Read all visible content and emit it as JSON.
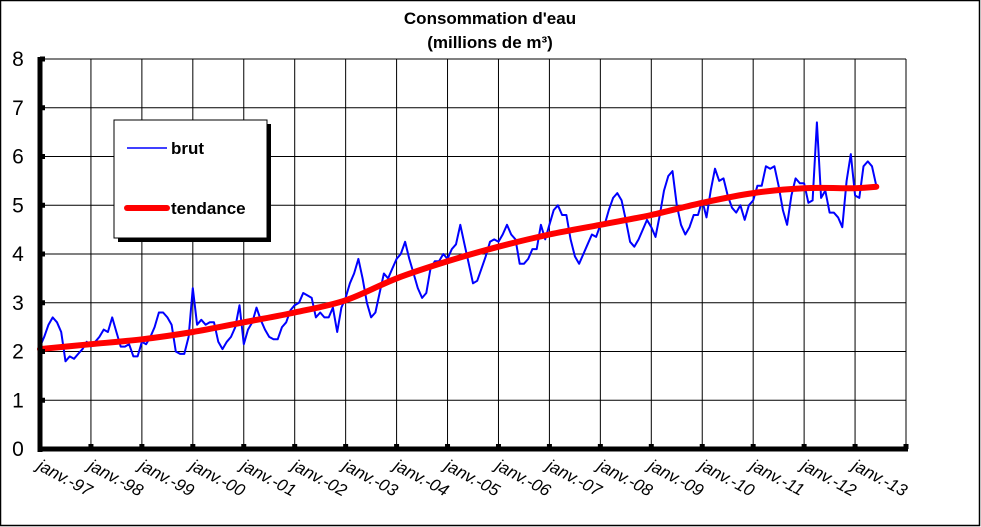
{
  "chart_data": {
    "type": "line",
    "title": "Consommation d'eau",
    "subtitle": "(millions de m³)",
    "xlabel": "",
    "ylabel": "",
    "ylim": [
      0,
      8
    ],
    "yticks": [
      "0",
      "1",
      "2",
      "3",
      "4",
      "5",
      "6",
      "7",
      "8"
    ],
    "xlim": [
      "1997-01",
      "2014-01"
    ],
    "xticks": [
      "janv.-97",
      "janv.-98",
      "janv.-99",
      "janv.-00",
      "janv.-01",
      "janv.-02",
      "janv.-03",
      "janv.-04",
      "janv.-05",
      "janv.-06",
      "janv.-07",
      "janv.-08",
      "janv.-09",
      "janv.-10",
      "janv.-11",
      "janv.-12",
      "janv.-13"
    ],
    "grid": true,
    "legend_placement": "top-left",
    "series": [
      {
        "name": "brut",
        "color": "#0000ff",
        "frequency": "monthly",
        "start": "1997-01",
        "values": [
          2.1,
          2.3,
          2.55,
          2.7,
          2.6,
          2.4,
          1.8,
          1.9,
          1.85,
          1.95,
          2.05,
          2.2,
          2.1,
          2.2,
          2.3,
          2.45,
          2.4,
          2.7,
          2.4,
          2.1,
          2.1,
          2.15,
          1.9,
          1.9,
          2.2,
          2.15,
          2.3,
          2.5,
          2.8,
          2.8,
          2.7,
          2.55,
          2.0,
          1.95,
          1.95,
          2.3,
          3.3,
          2.55,
          2.65,
          2.55,
          2.6,
          2.6,
          2.2,
          2.05,
          2.2,
          2.3,
          2.5,
          2.95,
          2.15,
          2.45,
          2.6,
          2.9,
          2.65,
          2.45,
          2.3,
          2.25,
          2.25,
          2.5,
          2.6,
          2.85,
          2.95,
          3.0,
          3.2,
          3.15,
          3.1,
          2.7,
          2.8,
          2.7,
          2.7,
          2.9,
          2.4,
          2.9,
          3.1,
          3.4,
          3.6,
          3.9,
          3.5,
          3.0,
          2.7,
          2.8,
          3.2,
          3.6,
          3.5,
          3.7,
          3.9,
          4.0,
          4.25,
          3.9,
          3.6,
          3.3,
          3.1,
          3.2,
          3.7,
          3.85,
          3.85,
          4.0,
          3.9,
          4.1,
          4.2,
          4.6,
          4.2,
          3.8,
          3.4,
          3.45,
          3.7,
          3.95,
          4.25,
          4.3,
          4.25,
          4.4,
          4.6,
          4.4,
          4.3,
          3.8,
          3.8,
          3.9,
          4.1,
          4.1,
          4.6,
          4.3,
          4.6,
          4.9,
          5.0,
          4.8,
          4.8,
          4.3,
          3.95,
          3.8,
          4.0,
          4.2,
          4.4,
          4.35,
          4.6,
          4.6,
          4.9,
          5.15,
          5.25,
          5.1,
          4.7,
          4.25,
          4.15,
          4.3,
          4.5,
          4.7,
          4.55,
          4.35,
          4.8,
          5.3,
          5.6,
          5.7,
          5.0,
          4.6,
          4.4,
          4.55,
          4.8,
          4.8,
          5.1,
          4.75,
          5.3,
          5.75,
          5.5,
          5.55,
          5.2,
          4.95,
          4.85,
          5.0,
          4.7,
          5.0,
          5.1,
          5.4,
          5.4,
          5.8,
          5.75,
          5.8,
          5.4,
          4.9,
          4.6,
          5.2,
          5.55,
          5.45,
          5.45,
          5.05,
          5.1,
          6.7,
          5.15,
          5.3,
          4.85,
          4.85,
          4.75,
          4.55,
          5.5,
          6.05,
          5.2,
          5.15,
          5.8,
          5.9,
          5.8,
          5.4
        ]
      },
      {
        "name": "tendance",
        "color": "#ff0000",
        "points": [
          {
            "x": "1997-01",
            "y": 2.05
          },
          {
            "x": "1998-01",
            "y": 2.15
          },
          {
            "x": "1999-01",
            "y": 2.25
          },
          {
            "x": "2000-01",
            "y": 2.4
          },
          {
            "x": "2001-01",
            "y": 2.6
          },
          {
            "x": "2002-01",
            "y": 2.8
          },
          {
            "x": "2003-01",
            "y": 3.05
          },
          {
            "x": "2004-01",
            "y": 3.5
          },
          {
            "x": "2005-01",
            "y": 3.85
          },
          {
            "x": "2006-01",
            "y": 4.15
          },
          {
            "x": "2007-01",
            "y": 4.4
          },
          {
            "x": "2008-01",
            "y": 4.6
          },
          {
            "x": "2009-01",
            "y": 4.8
          },
          {
            "x": "2010-01",
            "y": 5.05
          },
          {
            "x": "2011-01",
            "y": 5.25
          },
          {
            "x": "2012-01",
            "y": 5.35
          },
          {
            "x": "2013-01",
            "y": 5.35
          },
          {
            "x": "2013-06",
            "y": 5.38
          }
        ]
      }
    ]
  }
}
